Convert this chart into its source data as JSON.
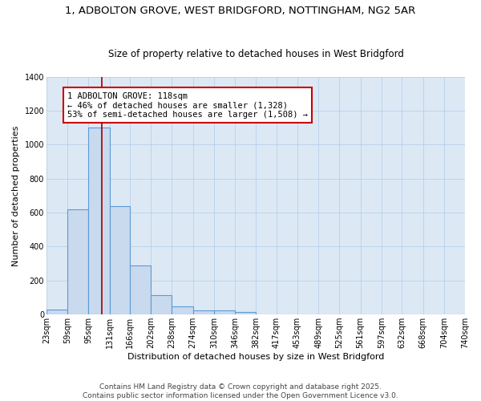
{
  "title1": "1, ADBOLTON GROVE, WEST BRIDGFORD, NOTTINGHAM, NG2 5AR",
  "title2": "Size of property relative to detached houses in West Bridgford",
  "xlabel": "Distribution of detached houses by size in West Bridgford",
  "ylabel": "Number of detached properties",
  "bin_edges": [
    23,
    59,
    95,
    131,
    166,
    202,
    238,
    274,
    310,
    346,
    382,
    417,
    453,
    489,
    525,
    561,
    597,
    632,
    668,
    704,
    740
  ],
  "bar_heights": [
    30,
    620,
    1100,
    640,
    290,
    115,
    50,
    25,
    25,
    15,
    0,
    0,
    0,
    0,
    0,
    0,
    0,
    0,
    0,
    0
  ],
  "bar_color": "#c9d9ee",
  "bar_edge_color": "#5b9bd5",
  "plot_bg_color": "#dce9f5",
  "fig_bg_color": "#ffffff",
  "grid_color": "#b8cfe8",
  "property_size": 118,
  "red_line_color": "#990000",
  "annotation_text": "1 ADBOLTON GROVE: 118sqm\n← 46% of detached houses are smaller (1,328)\n53% of semi-detached houses are larger (1,508) →",
  "annotation_box_color": "#ffffff",
  "annotation_edge_color": "#cc0000",
  "ylim": [
    0,
    1400
  ],
  "yticks": [
    0,
    200,
    400,
    600,
    800,
    1000,
    1200,
    1400
  ],
  "footer_text": "Contains HM Land Registry data © Crown copyright and database right 2025.\nContains public sector information licensed under the Open Government Licence v3.0.",
  "title1_fontsize": 9.5,
  "title2_fontsize": 8.5,
  "xlabel_fontsize": 8,
  "ylabel_fontsize": 8,
  "tick_fontsize": 7,
  "annotation_fontsize": 7.5,
  "footer_fontsize": 6.5
}
